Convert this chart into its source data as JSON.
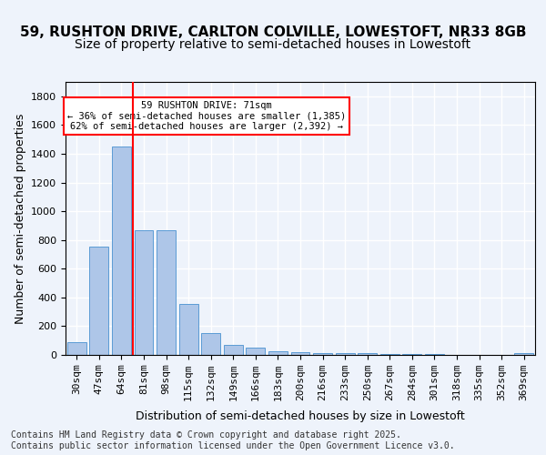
{
  "title1": "59, RUSHTON DRIVE, CARLTON COLVILLE, LOWESTOFT, NR33 8GB",
  "title2": "Size of property relative to semi-detached houses in Lowestoft",
  "xlabel": "Distribution of semi-detached houses by size in Lowestoft",
  "ylabel": "Number of semi-detached properties",
  "footer": "Contains HM Land Registry data © Crown copyright and database right 2025.\nContains public sector information licensed under the Open Government Licence v3.0.",
  "categories": [
    "30sqm",
    "47sqm",
    "64sqm",
    "81sqm",
    "98sqm",
    "115sqm",
    "132sqm",
    "149sqm",
    "166sqm",
    "183sqm",
    "200sqm",
    "216sqm",
    "233sqm",
    "250sqm",
    "267sqm",
    "284sqm",
    "301sqm",
    "318sqm",
    "335sqm",
    "352sqm",
    "369sqm"
  ],
  "values": [
    88,
    755,
    1450,
    870,
    870,
    355,
    155,
    70,
    48,
    25,
    20,
    15,
    10,
    12,
    8,
    5,
    5,
    3,
    3,
    2,
    15
  ],
  "bar_color": "#aec6e8",
  "bar_edge_color": "#5b9bd5",
  "vline_index": 2,
  "vline_color": "red",
  "annotation_text": "59 RUSHTON DRIVE: 71sqm\n← 36% of semi-detached houses are smaller (1,385)\n62% of semi-detached houses are larger (2,392) →",
  "annotation_box_color": "white",
  "annotation_box_edge": "red",
  "ylim": [
    0,
    1900
  ],
  "yticks": [
    0,
    200,
    400,
    600,
    800,
    1000,
    1200,
    1400,
    1600,
    1800
  ],
  "bg_color": "#eef3fb",
  "plot_bg_color": "#eef3fb",
  "grid_color": "white",
  "title_fontsize": 11,
  "subtitle_fontsize": 10,
  "axis_label_fontsize": 9,
  "tick_fontsize": 8,
  "footer_fontsize": 7
}
